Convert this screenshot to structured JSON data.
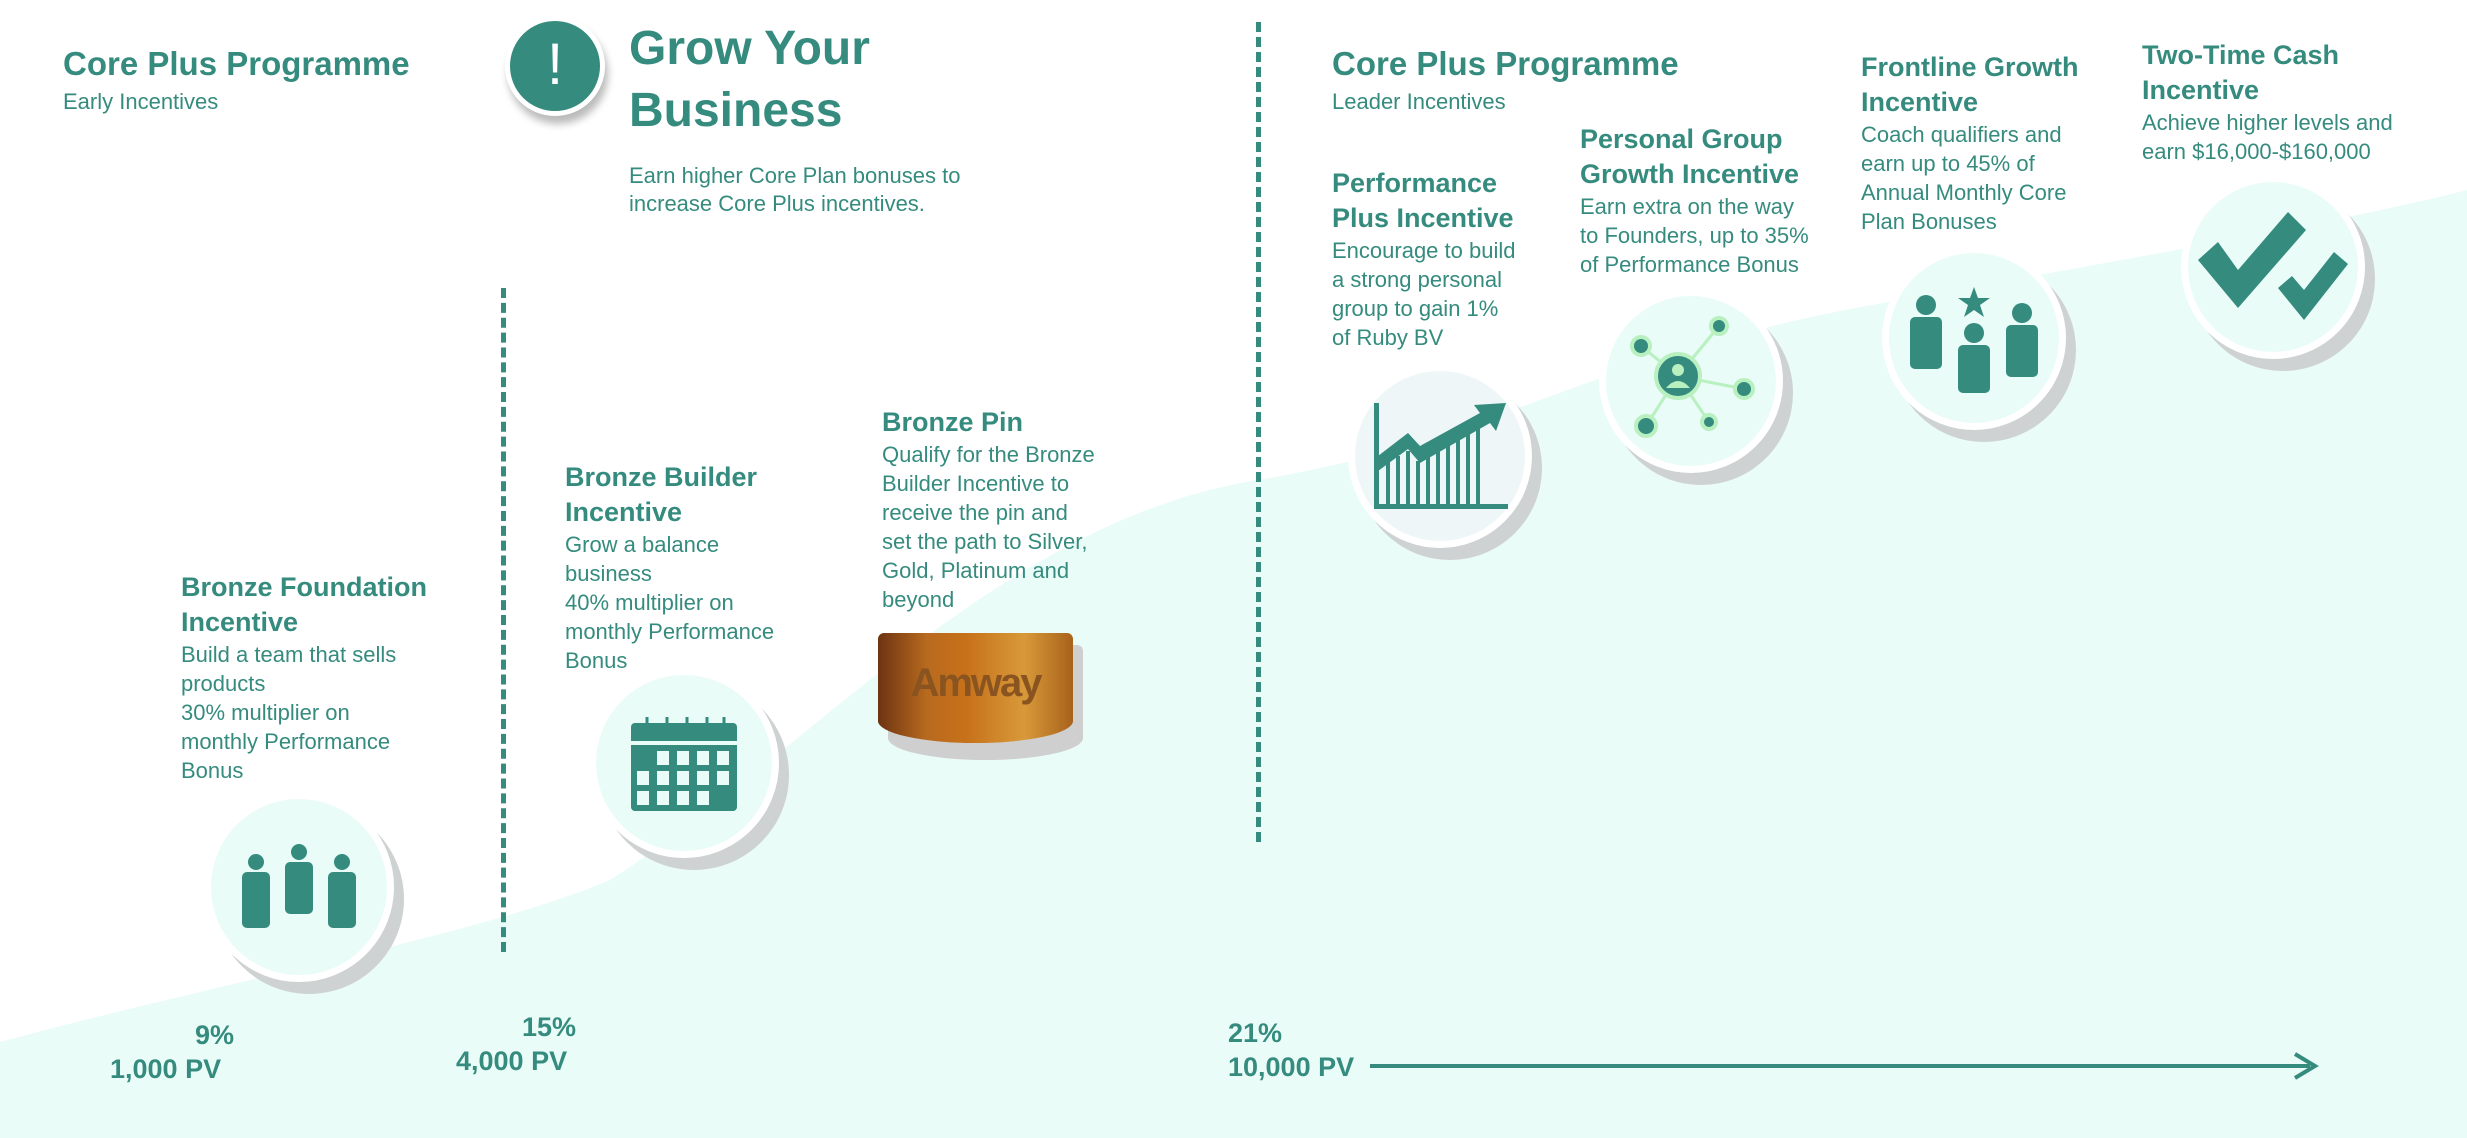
{
  "colors": {
    "accent": "#358b7e",
    "background_area": "#e9fcf8",
    "badge": "#c7711a"
  },
  "early": {
    "title": "Core Plus Programme",
    "subtitle": "Early Incentives"
  },
  "grow": {
    "icon": "exclamation-icon",
    "title_line1": "Grow Your",
    "title_line2": "Business",
    "desc_line1": "Earn higher Core Plan bonuses to",
    "desc_line2": "increase Core Plus incentives."
  },
  "leader": {
    "title": "Core Plus Programme",
    "subtitle": "Leader Incentives"
  },
  "items": [
    {
      "title": [
        "Bronze Foundation",
        "Incentive"
      ],
      "desc": [
        "Build a team that sells",
        "products",
        "30% multiplier on",
        "monthly Performance",
        "Bonus"
      ],
      "icon": "team-icon"
    },
    {
      "title": [
        "Bronze Builder",
        "Incentive"
      ],
      "desc": [
        "Grow a balance",
        "business",
        "40% multiplier on",
        "monthly Performance",
        "Bonus"
      ],
      "icon": "calendar-icon"
    },
    {
      "title": [
        "Bronze Pin"
      ],
      "desc": [
        "Qualify for the Bronze",
        "Builder Incentive to",
        "receive the pin and",
        "set the path to Silver,",
        "Gold, Platinum and",
        "beyond"
      ],
      "icon": "bronze-pin-badge",
      "badge_text": "Amway"
    },
    {
      "title": [
        "Performance",
        "Plus Incentive"
      ],
      "desc": [
        "Encourage to build",
        "a strong personal",
        "group to gain 1%",
        "of Ruby BV"
      ],
      "icon": "growth-chart-icon"
    },
    {
      "title": [
        "Personal Group",
        "Growth Incentive"
      ],
      "desc": [
        "Earn extra on the way",
        "to Founders, up to 35%",
        "of Performance Bonus"
      ],
      "icon": "network-icon"
    },
    {
      "title": [
        "Frontline Growth",
        "Incentive"
      ],
      "desc": [
        "Coach qualifiers and",
        "earn up to 45% of",
        "Annual Monthly Core",
        "Plan Bonuses"
      ],
      "icon": "team-star-icon"
    },
    {
      "title": [
        "Two-Time Cash",
        "Incentive"
      ],
      "desc": [
        "Achieve higher levels and",
        "earn $16,000-$160,000"
      ],
      "icon": "double-check-icon"
    }
  ],
  "levels": [
    {
      "pct": "9%",
      "pv": "1,000 PV"
    },
    {
      "pct": "15%",
      "pv": "4,000 PV"
    },
    {
      "pct": "21%",
      "pv": "10,000 PV"
    }
  ]
}
